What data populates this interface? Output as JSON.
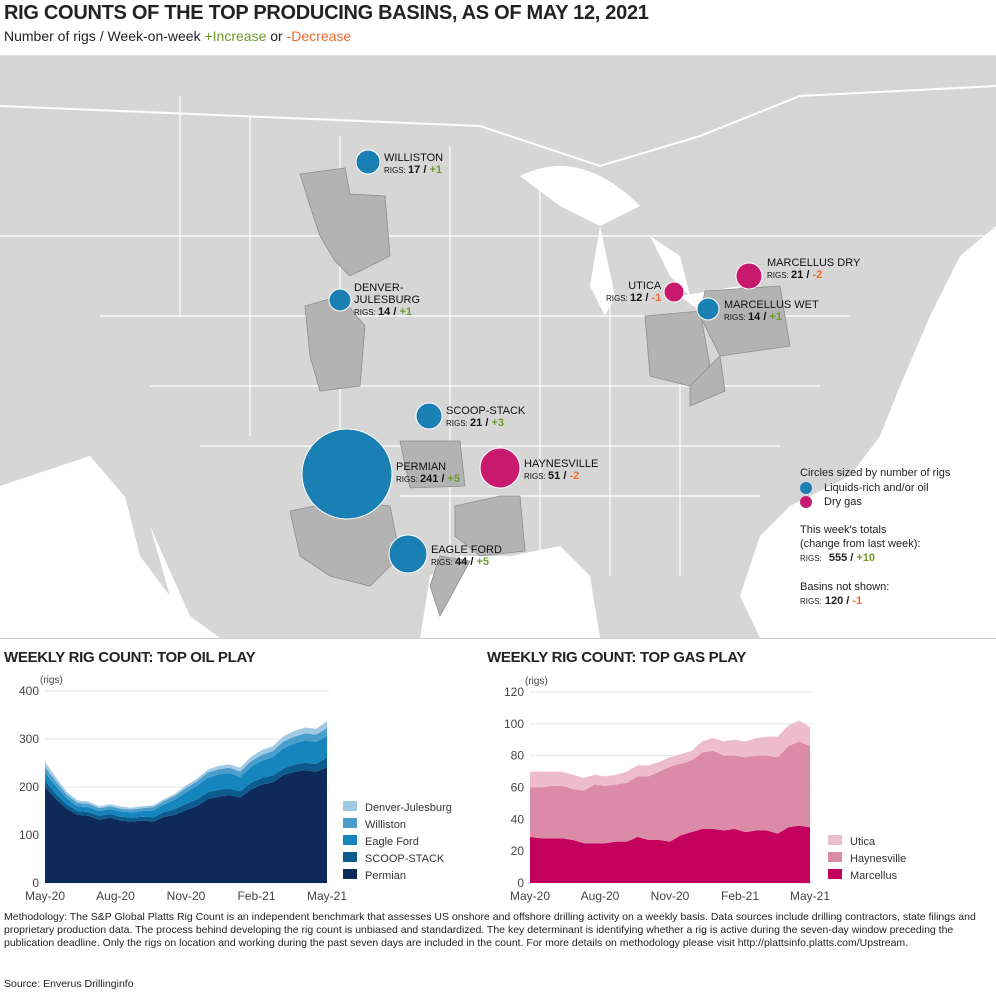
{
  "header": {
    "title": "RIG COUNTS OF THE TOP PRODUCING BASINS, AS OF MAY 12, 2021",
    "subtitle_prefix": "Number of rigs / Week-on-week ",
    "increase": "+Increase",
    "or": " or ",
    "decrease": "-Decrease"
  },
  "colors": {
    "oil": "#1a80b3",
    "gas": "#c8196e",
    "increase": "#6e9a2e",
    "decrease": "#f26b2d"
  },
  "basins": [
    {
      "name": "WILLISTON",
      "rigs": "17",
      "change": "+1",
      "type": "oil"
    },
    {
      "name": "DENVER-\nJULESBURG",
      "rigs": "14",
      "change": "+1",
      "type": "oil"
    },
    {
      "name": "SCOOP-STACK",
      "rigs": "21",
      "change": "+3",
      "type": "oil"
    },
    {
      "name": "PERMIAN",
      "rigs": "241",
      "change": "+5",
      "type": "oil"
    },
    {
      "name": "HAYNESVILLE",
      "rigs": "51",
      "change": "-2",
      "type": "gas"
    },
    {
      "name": "EAGLE FORD",
      "rigs": "44",
      "change": "+5",
      "type": "oil"
    },
    {
      "name": "UTICA",
      "rigs": "12",
      "change": "-1",
      "type": "gas"
    },
    {
      "name": "MARCELLUS DRY",
      "rigs": "21",
      "change": "-2",
      "type": "gas"
    },
    {
      "name": "MARCELLUS WET",
      "rigs": "14",
      "change": "+1",
      "type": "oil"
    }
  ],
  "rigs_label": "RIGS:",
  "legend": {
    "title": "Circles sized by number of rigs",
    "oil": "Liquids-rich and/or oil",
    "gas": "Dry gas",
    "totals_line1": "This week's totals",
    "totals_line2": "(change from last week):",
    "totals_rigs": "555",
    "totals_change": "+10",
    "not_shown": "Basins not shown:",
    "not_shown_rigs": "120",
    "not_shown_change": "-1"
  },
  "chart_data": [
    {
      "type": "area",
      "title": "WEEKLY RIG COUNT: TOP OIL PLAY",
      "ylabel": "(rigs)",
      "ylim": [
        0,
        400
      ],
      "yticks": [
        "0",
        "100",
        "200",
        "300",
        "400"
      ],
      "xticks": [
        "May-20",
        "Aug-20",
        "Nov-20",
        "Feb-21",
        "May-21"
      ],
      "grid": true,
      "legend": "right",
      "stacked": true,
      "series": [
        {
          "name": "Permian",
          "color": "#0d2a5a",
          "values": [
            200,
            175,
            155,
            142,
            140,
            132,
            136,
            130,
            128,
            130,
            128,
            138,
            142,
            152,
            160,
            175,
            180,
            183,
            178,
            195,
            205,
            210,
            225,
            232,
            235,
            232,
            241
          ]
        },
        {
          "name": "SCOOP-STACK",
          "color": "#0b5b8f",
          "values": [
            12,
            11,
            9,
            8,
            8,
            8,
            8,
            8,
            8,
            8,
            9,
            10,
            12,
            13,
            14,
            14,
            14,
            14,
            13,
            14,
            14,
            14,
            14,
            15,
            16,
            16,
            21
          ]
        },
        {
          "name": "Eagle Ford",
          "color": "#1585bd",
          "values": [
            18,
            16,
            12,
            10,
            10,
            10,
            10,
            11,
            11,
            12,
            14,
            16,
            20,
            24,
            28,
            30,
            32,
            32,
            30,
            33,
            36,
            38,
            42,
            44,
            46,
            46,
            44
          ]
        },
        {
          "name": "Williston",
          "color": "#4b9dcc",
          "values": [
            12,
            10,
            8,
            7,
            7,
            6,
            6,
            6,
            6,
            6,
            7,
            7,
            8,
            9,
            10,
            11,
            11,
            11,
            11,
            12,
            12,
            13,
            14,
            14,
            15,
            15,
            17
          ]
        },
        {
          "name": "Denver-Julesburg",
          "color": "#9fc9e4",
          "values": [
            10,
            8,
            6,
            5,
            5,
            4,
            4,
            4,
            4,
            4,
            4,
            4,
            4,
            5,
            5,
            6,
            7,
            7,
            8,
            9,
            10,
            10,
            11,
            12,
            12,
            12,
            14
          ]
        }
      ]
    },
    {
      "type": "area",
      "title": "WEEKLY RIG COUNT: TOP GAS PLAY",
      "ylabel": "(rigs)",
      "ylim": [
        0,
        120
      ],
      "yticks": [
        "0",
        "20",
        "40",
        "60",
        "80",
        "100",
        "120"
      ],
      "xticks": [
        "May-20",
        "Aug-20",
        "Nov-20",
        "Feb-21",
        "May-21"
      ],
      "grid": true,
      "legend": "right",
      "stacked": true,
      "series": [
        {
          "name": "Marcellus",
          "color": "#c4005e",
          "values": [
            29,
            28,
            28,
            28,
            27,
            25,
            25,
            25,
            26,
            26,
            29,
            27,
            27,
            26,
            30,
            32,
            34,
            34,
            33,
            34,
            32,
            33,
            33,
            31,
            35,
            36,
            35
          ]
        },
        {
          "name": "Haynesville",
          "color": "#db8aa7",
          "values": [
            31,
            32,
            33,
            33,
            32,
            33,
            37,
            36,
            36,
            37,
            38,
            40,
            43,
            47,
            45,
            45,
            48,
            49,
            47,
            46,
            47,
            47,
            47,
            48,
            51,
            53,
            51
          ]
        },
        {
          "name": "Utica",
          "color": "#eebdcd",
          "values": [
            10,
            10,
            9,
            9,
            9,
            8,
            6,
            6,
            6,
            7,
            7,
            7,
            6,
            6,
            6,
            6,
            7,
            8,
            9,
            10,
            10,
            11,
            12,
            13,
            13,
            13,
            12
          ]
        }
      ]
    }
  ],
  "methodology": "Methodology: The S&P Global Platts Rig Count is an independent benchmark that assesses US onshore and offshore drilling activity on a weekly basis. Data sources include drilling contractors, state filings and proprietary production data. The process behind developing the rig count is unbiased and standardized. The key determinant is identifying whether a rig is active during the seven-day window preceding the publication deadline. Only the rigs on location and working during the past seven days are included in the count. For more details on methodology please visit http://plattsinfo.platts.com/Upstream.",
  "source": "Source: Enverus Drillinginfo"
}
